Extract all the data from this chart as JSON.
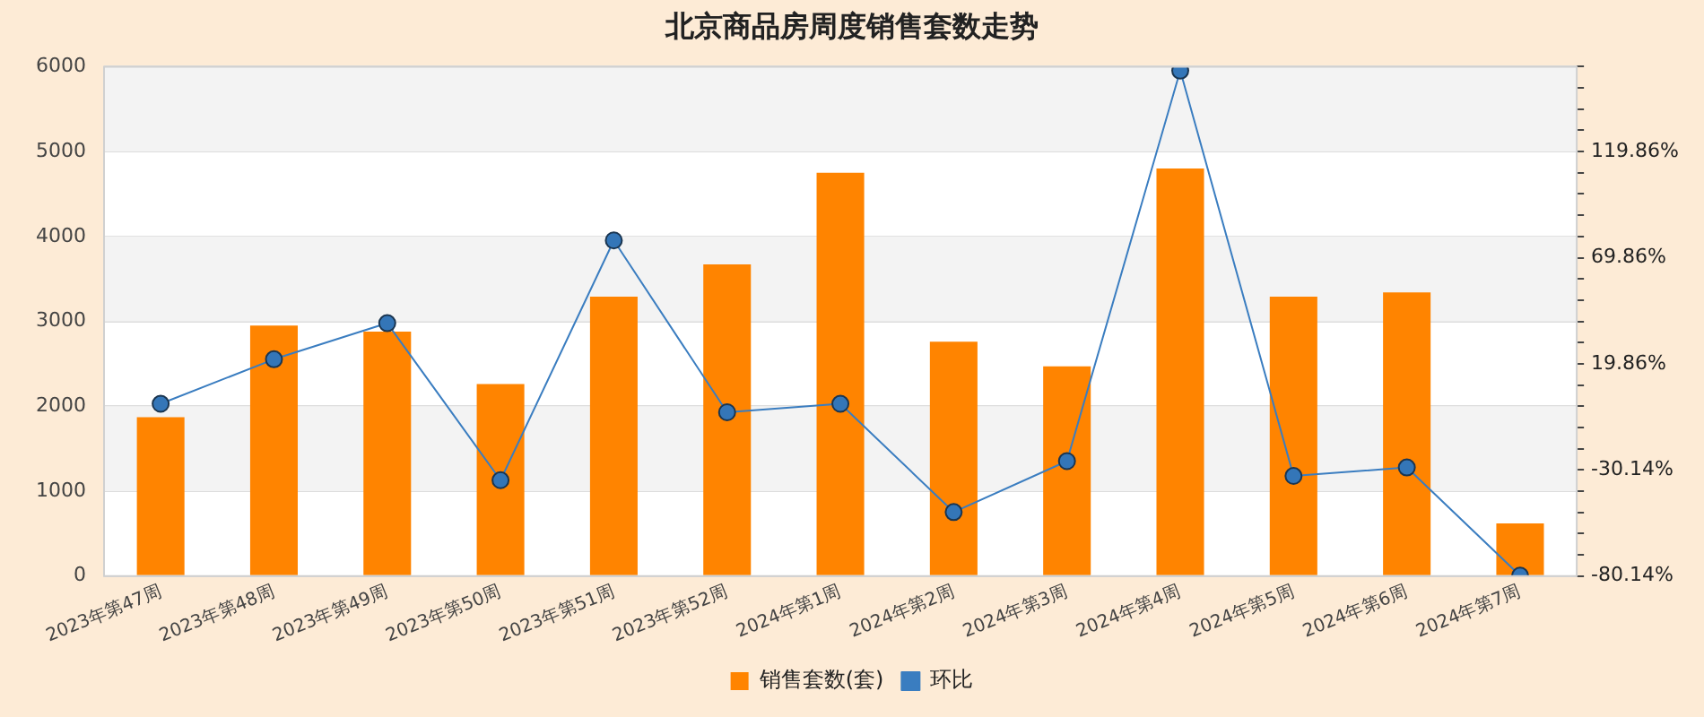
{
  "chart_data": {
    "type": "bar",
    "title": "北京商品房周度销售套数走势",
    "categories": [
      "2023年第47周",
      "2023年第48周",
      "2023年第49周",
      "2023年第50周",
      "2023年第51周",
      "2023年第52周",
      "2024年第1周",
      "2024年第2周",
      "2024年第3周",
      "2024年第4周",
      "2024年第5周",
      "2024年第6周",
      "2024年第7周"
    ],
    "series": [
      {
        "name": "销售套数(套)",
        "color": "#ff8400",
        "values": [
          1870,
          2950,
          2880,
          2260,
          3290,
          3670,
          4750,
          2760,
          2470,
          4800,
          3290,
          3340,
          620
        ]
      },
      {
        "name": "环比",
        "type": "line",
        "axis": "y2",
        "color": "#3a7dc0",
        "marker": "circle",
        "line_style": "solid",
        "values": [
          1,
          22,
          39,
          -35,
          78,
          -3,
          1,
          -50,
          -26,
          158,
          -33,
          -29,
          -80
        ]
      }
    ],
    "ylim": [
      0,
      6000
    ],
    "yticks": [
      0,
      1000,
      2000,
      3000,
      4000,
      5000,
      6000
    ],
    "y2lim": [
      -80.14,
      159.86
    ],
    "y2ticks": [
      {
        "value": -80.14,
        "label": "-80.14%"
      },
      {
        "value": -70.14,
        "label": null
      },
      {
        "value": -60.14,
        "label": null
      },
      {
        "value": -50.14,
        "label": null
      },
      {
        "value": -40.14,
        "label": null
      },
      {
        "value": -30.14,
        "label": "-30.14%"
      },
      {
        "value": -20.14,
        "label": null
      },
      {
        "value": -10.14,
        "label": null
      },
      {
        "value": -0.14,
        "label": null
      },
      {
        "value": 9.86,
        "label": null
      },
      {
        "value": 19.86,
        "label": "19.86%"
      },
      {
        "value": 29.86,
        "label": null
      },
      {
        "value": 39.86,
        "label": null
      },
      {
        "value": 49.86,
        "label": null
      },
      {
        "value": 59.86,
        "label": null
      },
      {
        "value": 69.86,
        "label": "69.86%"
      },
      {
        "value": 79.86,
        "label": null
      },
      {
        "value": 89.86,
        "label": null
      },
      {
        "value": 99.86,
        "label": null
      },
      {
        "value": 109.86,
        "label": null
      },
      {
        "value": 119.86,
        "label": "119.86%"
      },
      {
        "value": 129.86,
        "label": null
      },
      {
        "value": 139.86,
        "label": null
      },
      {
        "value": 149.86,
        "label": null
      },
      {
        "value": 159.86,
        "label": null
      }
    ],
    "grid": "y",
    "legend": "bottom"
  }
}
